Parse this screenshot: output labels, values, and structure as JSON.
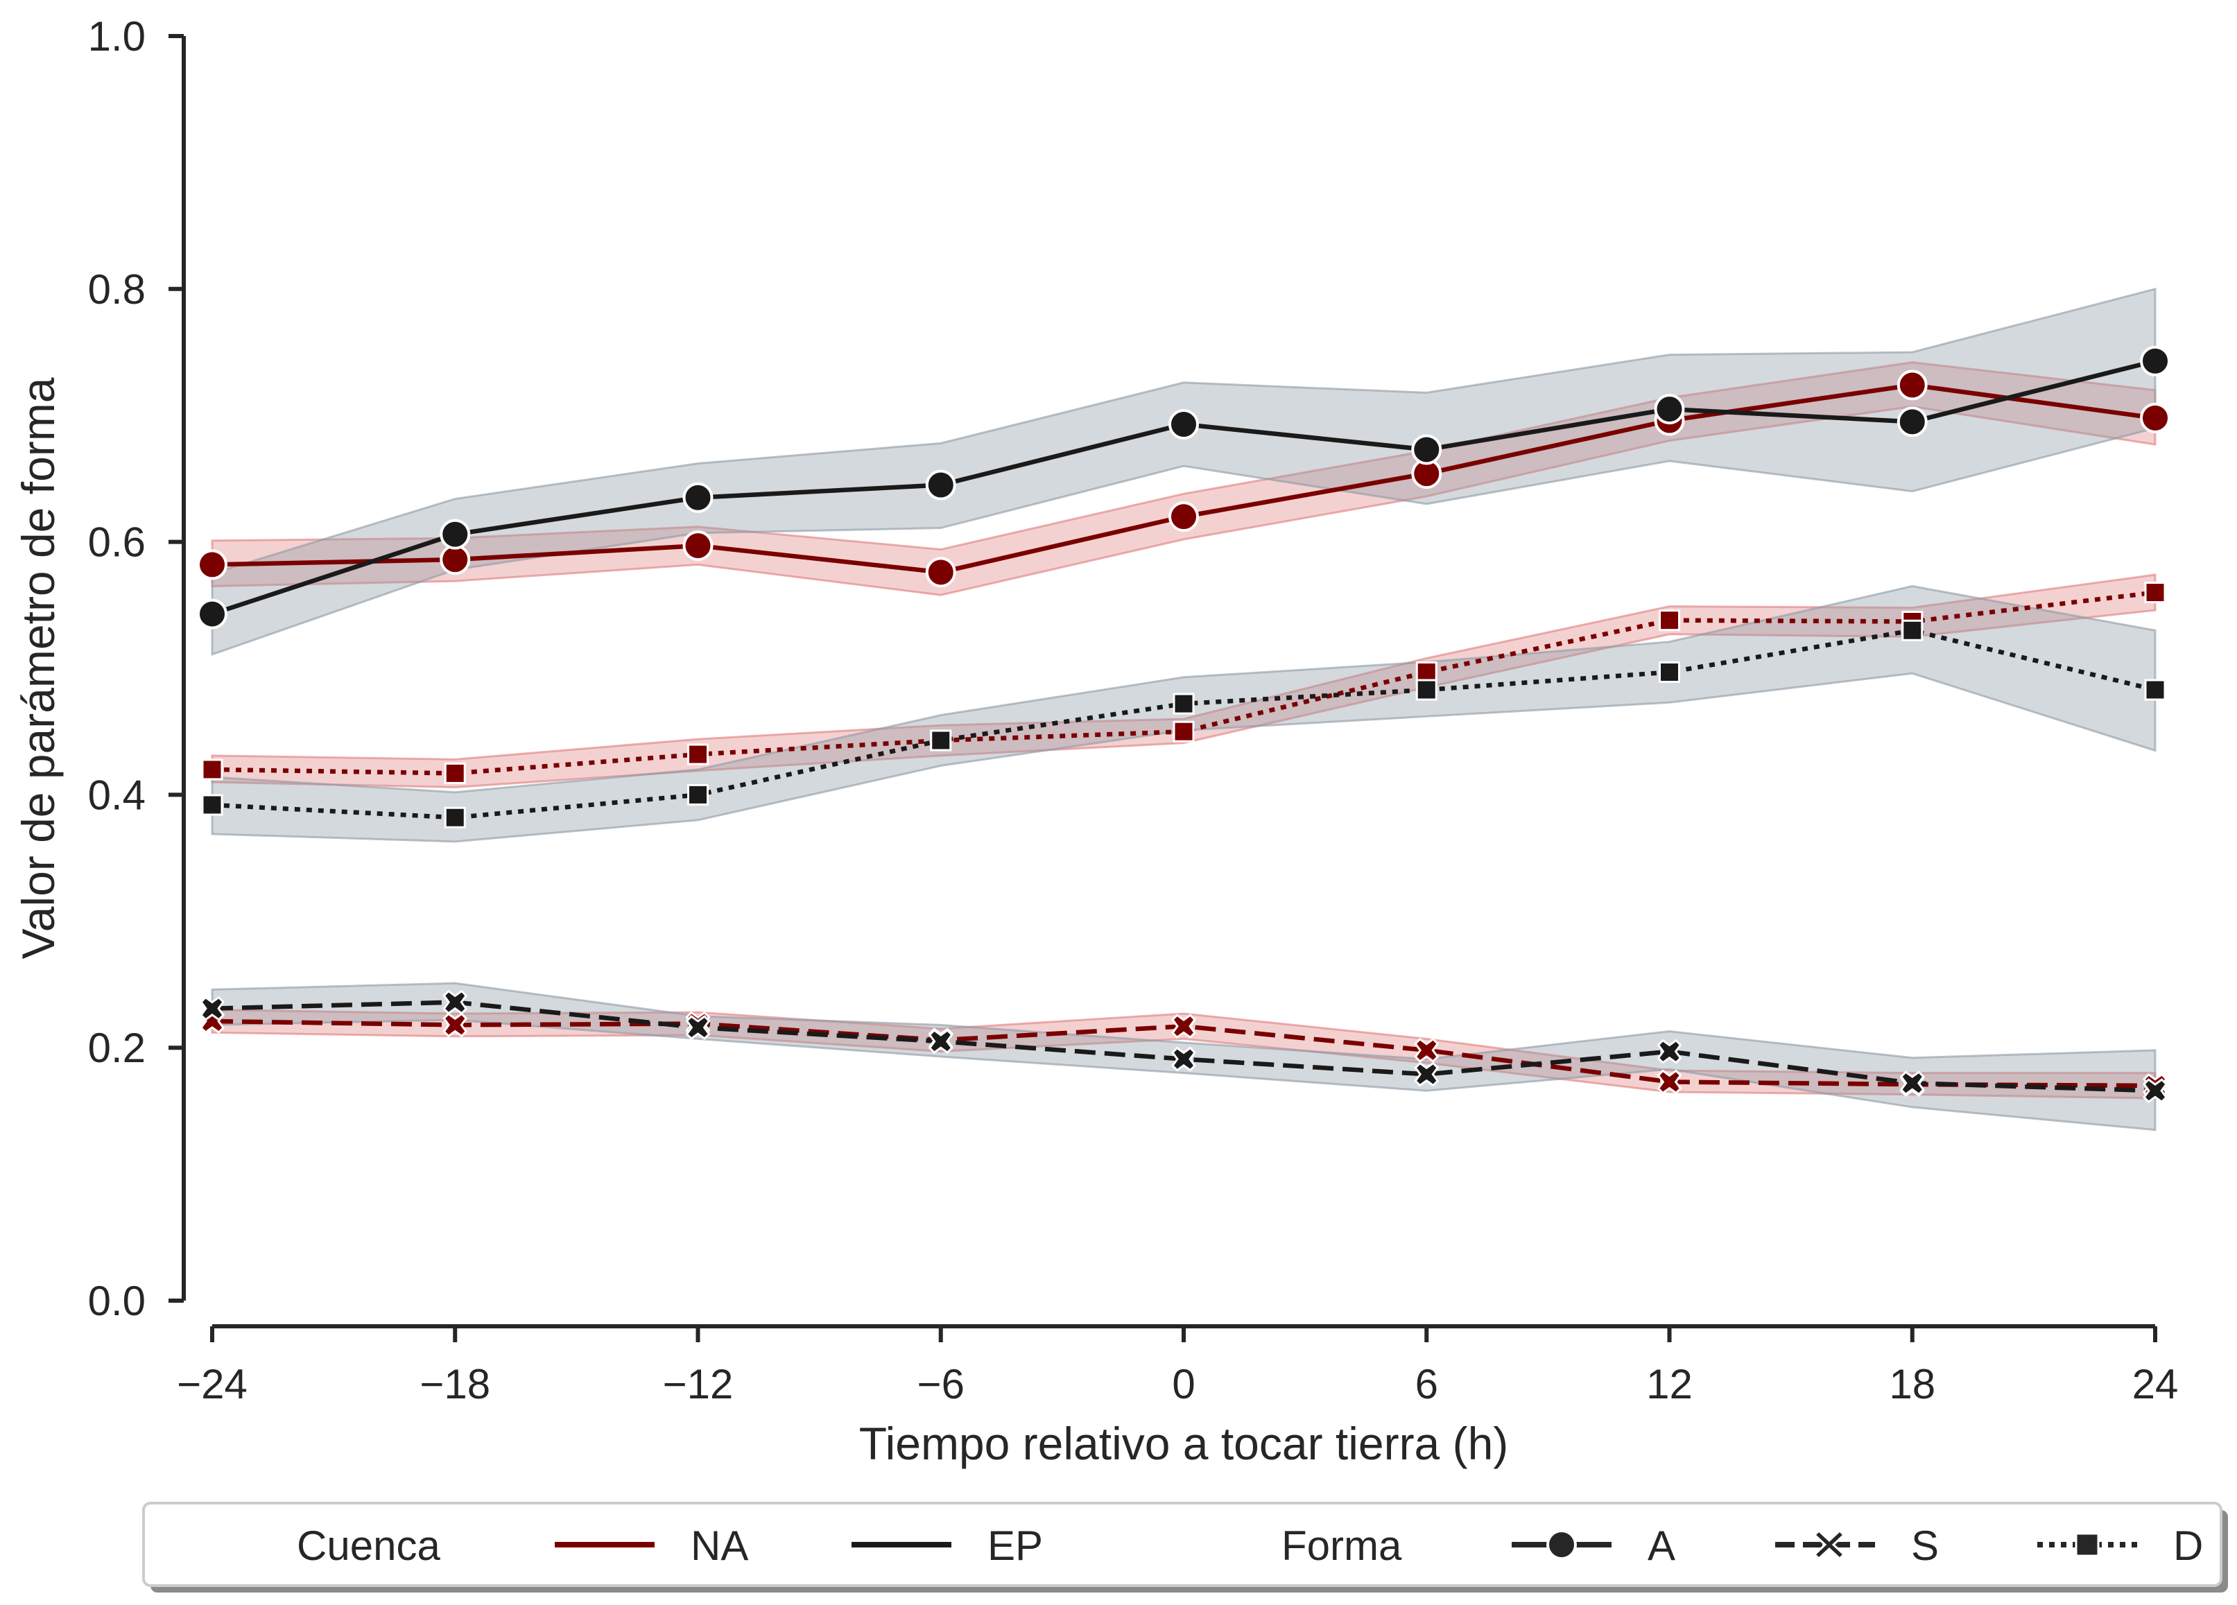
{
  "chart_data": {
    "type": "line",
    "xlabel": "Tiempo relativo a tocar tierra (h)",
    "ylabel": "Valor de parámetro de forma",
    "x": [
      -24,
      -18,
      -12,
      -6,
      0,
      6,
      12,
      18,
      24
    ],
    "x_tick_labels": [
      "−24",
      "−18",
      "−12",
      "−6",
      "0",
      "6",
      "12",
      "18",
      "24"
    ],
    "xlim": [
      -24,
      24
    ],
    "ylim": [
      0.0,
      1.0
    ],
    "y_ticks": [
      0.0,
      0.2,
      0.4,
      0.6,
      0.8,
      1.0
    ],
    "y_tick_labels": [
      "0.0",
      "0.2",
      "0.4",
      "0.6",
      "0.8",
      "1.0"
    ],
    "grid": false,
    "legend_placement": "bottom",
    "colors": {
      "NA": "#7a0000",
      "EP": "#1a1a1a",
      "NA_band": "#e07b7b",
      "EP_band": "#8d9aa5"
    },
    "legend": {
      "hue_title": "Cuenca",
      "hue_entries": [
        "NA",
        "EP"
      ],
      "style_title": "Forma",
      "style_entries": [
        "A",
        "S",
        "D"
      ]
    },
    "series": [
      {
        "cuenca": "NA",
        "forma": "A",
        "values": [
          0.582,
          0.586,
          0.597,
          0.576,
          0.62,
          0.654,
          0.696,
          0.724,
          0.698
        ],
        "lower": [
          0.565,
          0.569,
          0.582,
          0.558,
          0.602,
          0.636,
          0.68,
          0.707,
          0.677
        ],
        "upper": [
          0.601,
          0.603,
          0.612,
          0.594,
          0.638,
          0.672,
          0.714,
          0.742,
          0.72
        ]
      },
      {
        "cuenca": "EP",
        "forma": "A",
        "values": [
          0.543,
          0.606,
          0.635,
          0.645,
          0.693,
          0.673,
          0.705,
          0.695,
          0.743
        ],
        "lower": [
          0.511,
          0.578,
          0.607,
          0.611,
          0.66,
          0.63,
          0.664,
          0.64,
          0.69
        ],
        "upper": [
          0.575,
          0.634,
          0.662,
          0.678,
          0.726,
          0.718,
          0.748,
          0.75,
          0.8
        ]
      },
      {
        "cuenca": "NA",
        "forma": "S",
        "values": [
          0.221,
          0.218,
          0.219,
          0.206,
          0.217,
          0.198,
          0.173,
          0.171,
          0.17
        ],
        "lower": [
          0.212,
          0.209,
          0.21,
          0.197,
          0.207,
          0.188,
          0.165,
          0.163,
          0.16
        ],
        "upper": [
          0.23,
          0.227,
          0.228,
          0.215,
          0.227,
          0.207,
          0.182,
          0.18,
          0.18
        ]
      },
      {
        "cuenca": "EP",
        "forma": "S",
        "values": [
          0.231,
          0.236,
          0.216,
          0.205,
          0.191,
          0.179,
          0.197,
          0.172,
          0.166
        ],
        "lower": [
          0.218,
          0.222,
          0.207,
          0.193,
          0.18,
          0.166,
          0.183,
          0.153,
          0.135
        ],
        "upper": [
          0.246,
          0.251,
          0.225,
          0.218,
          0.204,
          0.191,
          0.213,
          0.192,
          0.198
        ]
      },
      {
        "cuenca": "NA",
        "forma": "D",
        "values": [
          0.42,
          0.417,
          0.432,
          0.443,
          0.45,
          0.497,
          0.538,
          0.537,
          0.56
        ],
        "lower": [
          0.41,
          0.406,
          0.419,
          0.431,
          0.441,
          0.485,
          0.527,
          0.525,
          0.546
        ],
        "upper": [
          0.431,
          0.428,
          0.444,
          0.455,
          0.46,
          0.508,
          0.549,
          0.548,
          0.574
        ]
      },
      {
        "cuenca": "EP",
        "forma": "D",
        "values": [
          0.392,
          0.382,
          0.4,
          0.443,
          0.472,
          0.483,
          0.497,
          0.53,
          0.483
        ],
        "lower": [
          0.369,
          0.363,
          0.38,
          0.423,
          0.451,
          0.462,
          0.473,
          0.496,
          0.435
        ],
        "upper": [
          0.414,
          0.402,
          0.42,
          0.463,
          0.493,
          0.505,
          0.521,
          0.565,
          0.53
        ]
      }
    ]
  }
}
